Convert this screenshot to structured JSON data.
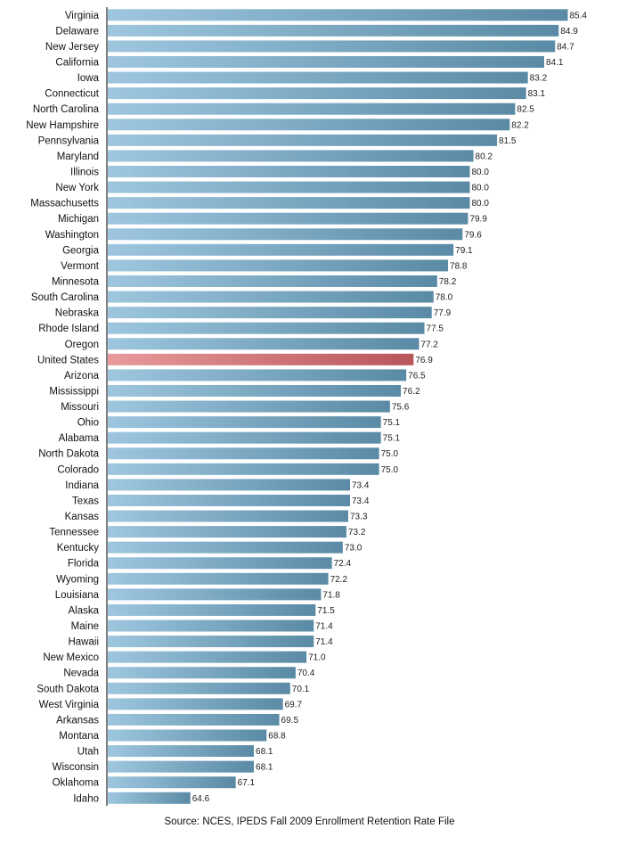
{
  "chart_data": {
    "type": "bar",
    "orientation": "horizontal",
    "title": "",
    "xlabel": "",
    "ylabel": "",
    "xlim": [
      60,
      86
    ],
    "grid": false,
    "legend": "none",
    "categories": [
      "Virginia",
      "Delaware",
      "New Jersey",
      "California",
      "Iowa",
      "Connecticut",
      "North Carolina",
      "New Hampshire",
      "Pennsylvania",
      "Maryland",
      "Illinois",
      "New York",
      "Massachusetts",
      "Michigan",
      "Washington",
      "Georgia",
      "Vermont",
      "Minnesota",
      "South Carolina",
      "Nebraska",
      "Rhode Island",
      "Oregon",
      "United States",
      "Arizona",
      "Mississippi",
      "Missouri",
      "Ohio",
      "Alabama",
      "North Dakota",
      "Colorado",
      "Indiana",
      "Texas",
      "Kansas",
      "Tennessee",
      "Kentucky",
      "Florida",
      "Wyoming",
      "Louisiana",
      "Alaska",
      "Maine",
      "Hawaii",
      "New Mexico",
      "Nevada",
      "South Dakota",
      "West Virginia",
      "Arkansas",
      "Montana",
      "Utah",
      "Wisconsin",
      "Oklahoma",
      "Idaho"
    ],
    "values": [
      85.4,
      84.9,
      84.7,
      84.1,
      83.2,
      83.1,
      82.5,
      82.2,
      81.5,
      80.2,
      80.0,
      80.0,
      80.0,
      79.9,
      79.6,
      79.1,
      78.8,
      78.2,
      78.0,
      77.9,
      77.5,
      77.2,
      76.9,
      76.5,
      76.2,
      75.6,
      75.1,
      75.1,
      75.0,
      75.0,
      73.4,
      73.4,
      73.3,
      73.2,
      73.0,
      72.4,
      72.2,
      71.8,
      71.5,
      71.4,
      71.4,
      71.0,
      70.4,
      70.1,
      69.7,
      69.5,
      68.8,
      68.1,
      68.1,
      67.1,
      64.6
    ],
    "value_labels": [
      "85.4",
      "84.9",
      "84.7",
      "84.1",
      "83.2",
      "83.1",
      "82.5",
      "82.2",
      "81.5",
      "80.2",
      "80.0",
      "80.0",
      "80.0",
      "79.9",
      "79.6",
      "79.1",
      "78.8",
      "78.2",
      "78.0",
      "77.9",
      "77.5",
      "77.2",
      "76.9",
      "76.5",
      "76.2",
      "75.6",
      "75.1",
      "75.1",
      "75.0",
      "75.0",
      "73.4",
      "73.4",
      "73.3",
      "73.2",
      "73.0",
      "72.4",
      "72.2",
      "71.8",
      "71.5",
      "71.4",
      "71.4",
      "71.0",
      "70.4",
      "70.1",
      "69.7",
      "69.5",
      "68.8",
      "68.1",
      "68.1",
      "67.1",
      "64.6"
    ],
    "highlight": "United States",
    "colors": {
      "bar_light": "#9ec7df",
      "bar_dark": "#5a8aa5",
      "highlight_light": "#e89a9c",
      "highlight_dark": "#b8555a",
      "axis": "#000000"
    }
  },
  "source_note": "Source: NCES, IPEDS Fall 2009 Enrollment Retention Rate File"
}
